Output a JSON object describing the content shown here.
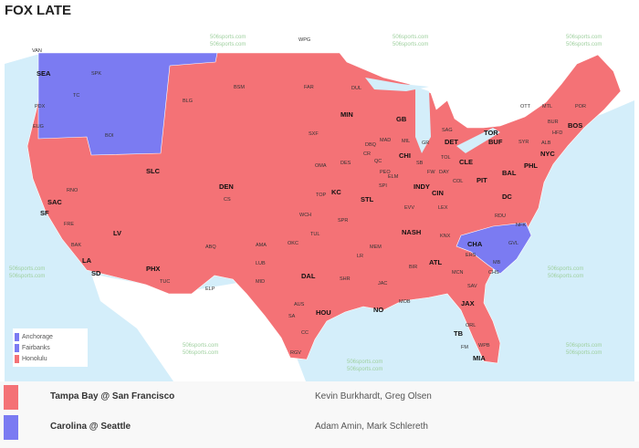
{
  "title": "FOX LATE",
  "colors": {
    "red": "#f47276",
    "blue": "#7b7bf2",
    "ocean": "#d4eefa",
    "land": "#ffffff"
  },
  "map": {
    "watermark": "506sports.com",
    "canada_labels": [
      "VAN",
      "WPG",
      "TOR",
      "OTT",
      "MTL"
    ],
    "markets": [
      "SEA",
      "SPK",
      "TC",
      "PDX",
      "EUG",
      "BOI",
      "BLG",
      "BSM",
      "FAR",
      "DUL",
      "MIN",
      "GB",
      "MAD",
      "MIL",
      "CHI",
      "DET",
      "CLE",
      "BUF",
      "SYR",
      "ALB",
      "BUR",
      "POR",
      "BOS",
      "HFD",
      "NYC",
      "PHL",
      "BAL",
      "DC",
      "PIT",
      "INDY",
      "CIN",
      "COL",
      "NFK",
      "RDU",
      "CHA",
      "GVL",
      "ATL",
      "NASH",
      "KNX",
      "MEM",
      "BIR",
      "JAX",
      "TB",
      "MIA",
      "ORL",
      "WPB",
      "FM",
      "NO",
      "HOU",
      "DAL",
      "SA",
      "AUS",
      "CC",
      "RGV",
      "OKC",
      "TUL",
      "KC",
      "STL",
      "DES",
      "OMA",
      "SXF",
      "DEN",
      "CS",
      "SLC",
      "LV",
      "PHX",
      "TUC",
      "ABQ",
      "ELP",
      "SAC",
      "SF",
      "FRE",
      "BAK",
      "LA",
      "SD",
      "RNO",
      "MCN",
      "SAV",
      "CHS",
      "MB",
      "AMA",
      "LUB",
      "MID",
      "WCH",
      "TOP",
      "SPR",
      "LR",
      "JAC",
      "MOB",
      "SHR",
      "ELM",
      "EVV",
      "LEX",
      "DAY",
      "TOL",
      "FW",
      "SB",
      "GR",
      "SAG",
      "PEO",
      "SPI",
      "QC",
      "CR",
      "DBQ",
      "EHS"
    ]
  },
  "legend": {
    "items": [
      {
        "label": "Anchorage",
        "color": "#7b7bf2"
      },
      {
        "label": "Fairbanks",
        "color": "#7b7bf2"
      },
      {
        "label": "Honolulu",
        "color": "#f47276"
      }
    ]
  },
  "games": [
    {
      "matchup": "Tampa Bay @ San Francisco",
      "announcers": "Kevin Burkhardt, Greg Olsen",
      "color": "#f47276"
    },
    {
      "matchup": "Carolina @ Seattle",
      "announcers": "Adam Amin, Mark Schlereth",
      "color": "#7b7bf2"
    }
  ]
}
